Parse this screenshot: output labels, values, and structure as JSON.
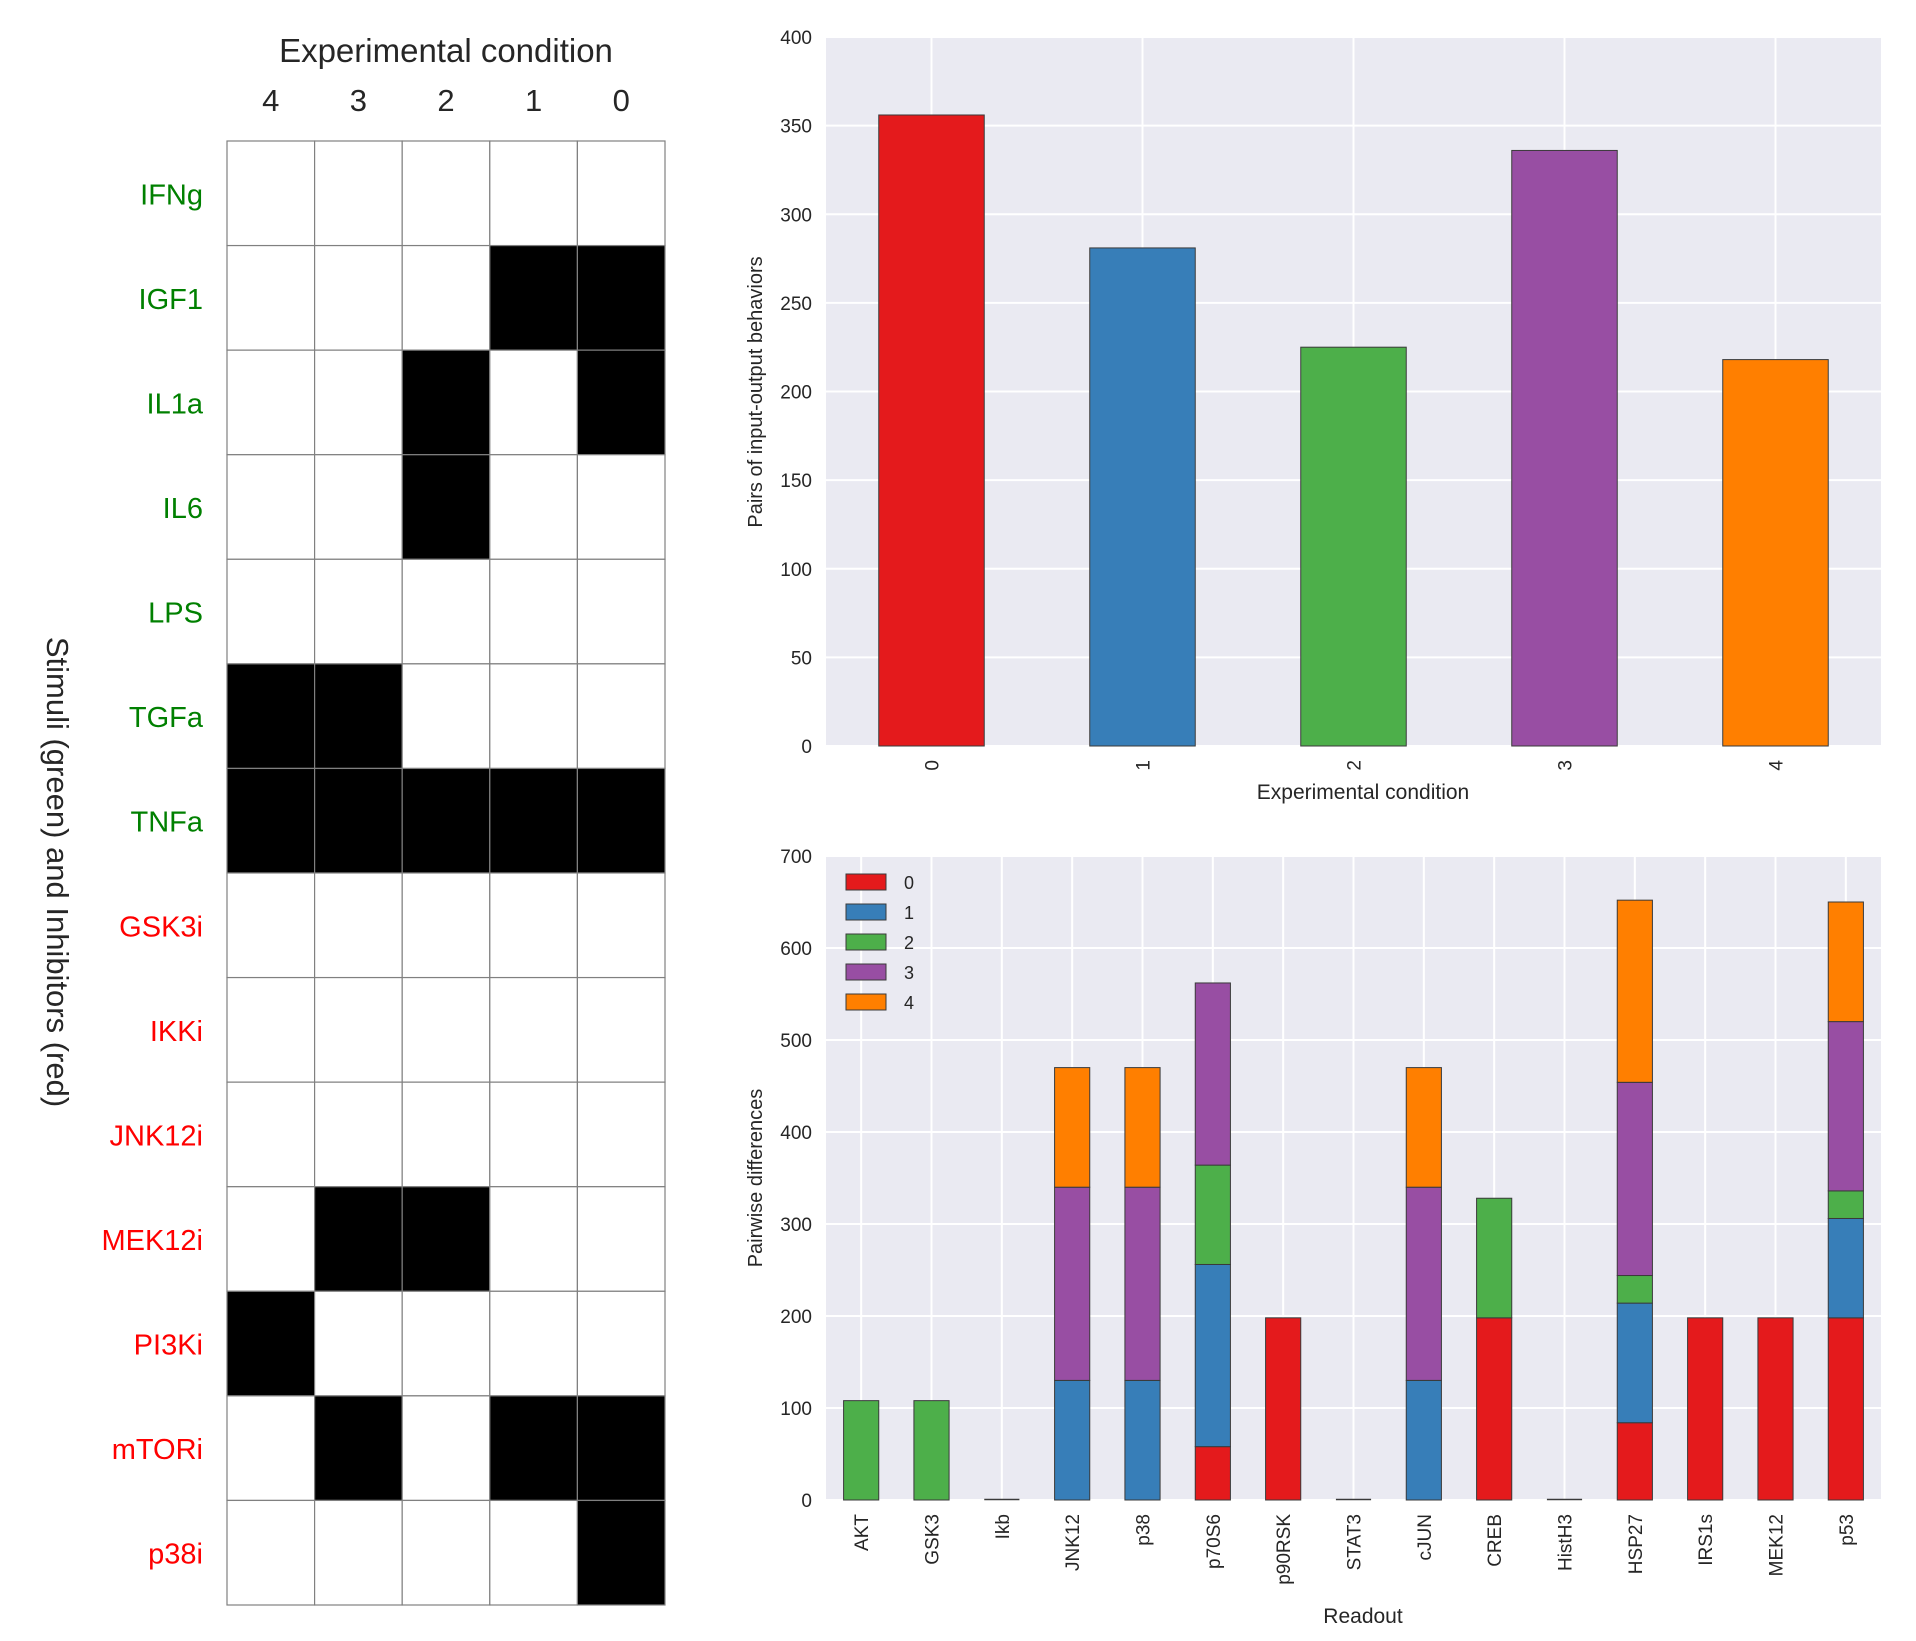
{
  "chart_data": [
    {
      "type": "heatmap",
      "title": "Experimental condition",
      "ylabel": "Stimuli (green) and Inhibitors (red)",
      "columns": [
        "4",
        "3",
        "2",
        "1",
        "0"
      ],
      "rows": [
        {
          "label": "IFNg",
          "kind": "stimulus"
        },
        {
          "label": "IGF1",
          "kind": "stimulus"
        },
        {
          "label": "IL1a",
          "kind": "stimulus"
        },
        {
          "label": "IL6",
          "kind": "stimulus"
        },
        {
          "label": "LPS",
          "kind": "stimulus"
        },
        {
          "label": "TGFa",
          "kind": "stimulus"
        },
        {
          "label": "TNFa",
          "kind": "stimulus"
        },
        {
          "label": "GSK3i",
          "kind": "inhibitor"
        },
        {
          "label": "IKKi",
          "kind": "inhibitor"
        },
        {
          "label": "JNK12i",
          "kind": "inhibitor"
        },
        {
          "label": "MEK12i",
          "kind": "inhibitor"
        },
        {
          "label": "PI3Ki",
          "kind": "inhibitor"
        },
        {
          "label": "mTORi",
          "kind": "inhibitor"
        },
        {
          "label": "p38i",
          "kind": "inhibitor"
        }
      ],
      "values": [
        [
          0,
          0,
          0,
          0,
          0
        ],
        [
          0,
          0,
          0,
          1,
          1
        ],
        [
          0,
          0,
          1,
          0,
          1
        ],
        [
          0,
          0,
          1,
          0,
          0
        ],
        [
          0,
          0,
          0,
          0,
          0
        ],
        [
          1,
          1,
          0,
          0,
          0
        ],
        [
          1,
          1,
          1,
          1,
          1
        ],
        [
          0,
          0,
          0,
          0,
          0
        ],
        [
          0,
          0,
          0,
          0,
          0
        ],
        [
          0,
          0,
          0,
          0,
          0
        ],
        [
          0,
          1,
          1,
          0,
          0
        ],
        [
          1,
          0,
          0,
          0,
          0
        ],
        [
          0,
          1,
          0,
          1,
          1
        ],
        [
          0,
          0,
          0,
          0,
          1
        ]
      ],
      "colors": {
        "on": "#000000",
        "off": "#ffffff",
        "grid": "#808080",
        "stimulus": "#008000",
        "inhibitor": "#ff0000"
      }
    },
    {
      "type": "bar",
      "categories": [
        "0",
        "1",
        "2",
        "3",
        "4"
      ],
      "values": [
        356,
        281,
        225,
        336,
        218
      ],
      "colors": [
        "#e41a1c",
        "#377eb8",
        "#4daf4a",
        "#984ea3",
        "#ff7f00"
      ],
      "xlabel": "Experimental condition",
      "ylabel": "Pairs of input-output behaviors",
      "ylim": [
        0,
        400
      ],
      "yticks": [
        "0",
        "50",
        "100",
        "150",
        "200",
        "250",
        "300",
        "350",
        "400"
      ],
      "grid": true
    },
    {
      "type": "bar",
      "stacked": true,
      "categories": [
        "AKT",
        "GSK3",
        "Ikb",
        "JNK12",
        "p38",
        "p70S6",
        "p90RSK",
        "STAT3",
        "cJUN",
        "CREB",
        "HistH3",
        "HSP27",
        "IRS1s",
        "MEK12",
        "p53"
      ],
      "series": [
        {
          "name": "0",
          "color": "#e41a1c",
          "values": [
            0,
            0,
            0,
            0,
            0,
            58,
            198,
            0,
            0,
            198,
            0,
            84,
            198,
            198,
            198
          ]
        },
        {
          "name": "1",
          "color": "#377eb8",
          "values": [
            0,
            0,
            0,
            130,
            130,
            198,
            0,
            0,
            130,
            0,
            0,
            130,
            0,
            0,
            108
          ]
        },
        {
          "name": "2",
          "color": "#4daf4a",
          "values": [
            108,
            108,
            0,
            0,
            0,
            108,
            0,
            0,
            0,
            130,
            0,
            30,
            0,
            0,
            30
          ]
        },
        {
          "name": "3",
          "color": "#984ea3",
          "values": [
            0,
            0,
            0,
            210,
            210,
            198,
            0,
            0,
            210,
            0,
            0,
            210,
            0,
            0,
            184
          ]
        },
        {
          "name": "4",
          "color": "#ff7f00",
          "values": [
            0,
            0,
            0,
            130,
            130,
            0,
            0,
            0,
            130,
            0,
            0,
            198,
            0,
            0,
            130
          ]
        }
      ],
      "xlabel": "Readout",
      "ylabel": "Pairwise differences",
      "ylim": [
        0,
        700
      ],
      "yticks": [
        "0",
        "100",
        "200",
        "300",
        "400",
        "500",
        "600",
        "700"
      ],
      "legend": "top-left",
      "grid": true
    }
  ]
}
